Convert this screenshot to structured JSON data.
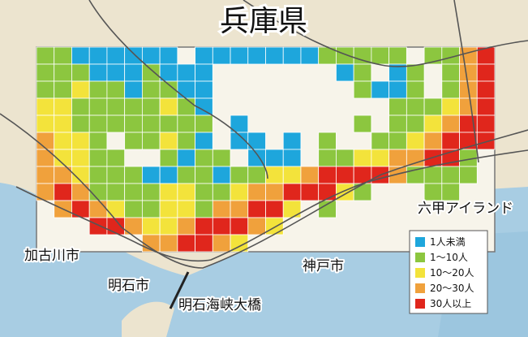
{
  "title": "兵庫県",
  "places": [
    "加古川市",
    "明石市",
    "明石海峡大橋",
    "神戸市",
    "六甲アイランド"
  ],
  "legend": [
    {
      "label": "1人未満",
      "color": "#1ea6dc"
    },
    {
      "label": "1〜10人",
      "color": "#8cc63f"
    },
    {
      "label": "10〜20人",
      "color": "#f3e33b"
    },
    {
      "label": "20〜30人",
      "color": "#f0a13c"
    },
    {
      "label": "30人以上",
      "color": "#e0261c"
    }
  ],
  "grid": {
    "rows": [
      "11000000.000000011111.1134",
      "1110001000.......01.01.134",
      "1121101100........1001.134",
      "2211111210..........111234",
      "2211111111.0......1.112344",
      "3221.11210.00.0.1..1123444",
      "32211..1011.000.112233441.",
      "3321110011011223444431111.",
      "3431111221123344421...11..",
      ".34321122133442.1.........",
      "...44322344432............",
      "......334432.............."
    ]
  }
}
